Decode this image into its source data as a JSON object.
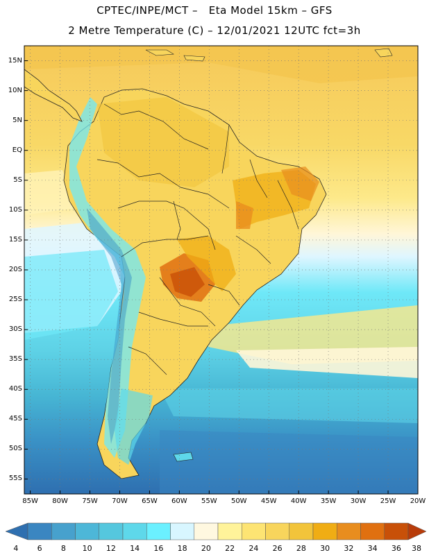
{
  "header": {
    "line1": "CPTEC/INPE/MCT –   Eta Model 15km – GFS",
    "line2": "2 Metre Temperature (C) – 12/01/2021 12UTC fct=3h"
  },
  "map": {
    "lat_ticks": [
      "15N",
      "10N",
      "5N",
      "EQ",
      "5S",
      "10S",
      "15S",
      "20S",
      "25S",
      "30S",
      "35S",
      "40S",
      "45S",
      "50S",
      "55S"
    ],
    "lon_ticks": [
      "85W",
      "80W",
      "75W",
      "70W",
      "65W",
      "60W",
      "55W",
      "50W",
      "45W",
      "40W",
      "35W",
      "30W",
      "25W",
      "20W"
    ]
  },
  "colorbar": {
    "labels": [
      "4",
      "6",
      "8",
      "10",
      "12",
      "14",
      "16",
      "18",
      "20",
      "22",
      "24",
      "26",
      "28",
      "30",
      "32",
      "34",
      "36",
      "38"
    ],
    "colors": [
      "#2e6fb0",
      "#3a86c1",
      "#47a1cd",
      "#4db7d8",
      "#55c7de",
      "#5ed8ea",
      "#6bf0ff",
      "#d8f6ff",
      "#fff8e0",
      "#fff39a",
      "#fde473",
      "#f8d55c",
      "#f2c43a",
      "#f0ad14",
      "#e88d1e",
      "#e07010",
      "#c85008",
      "#b83c0a"
    ]
  }
}
